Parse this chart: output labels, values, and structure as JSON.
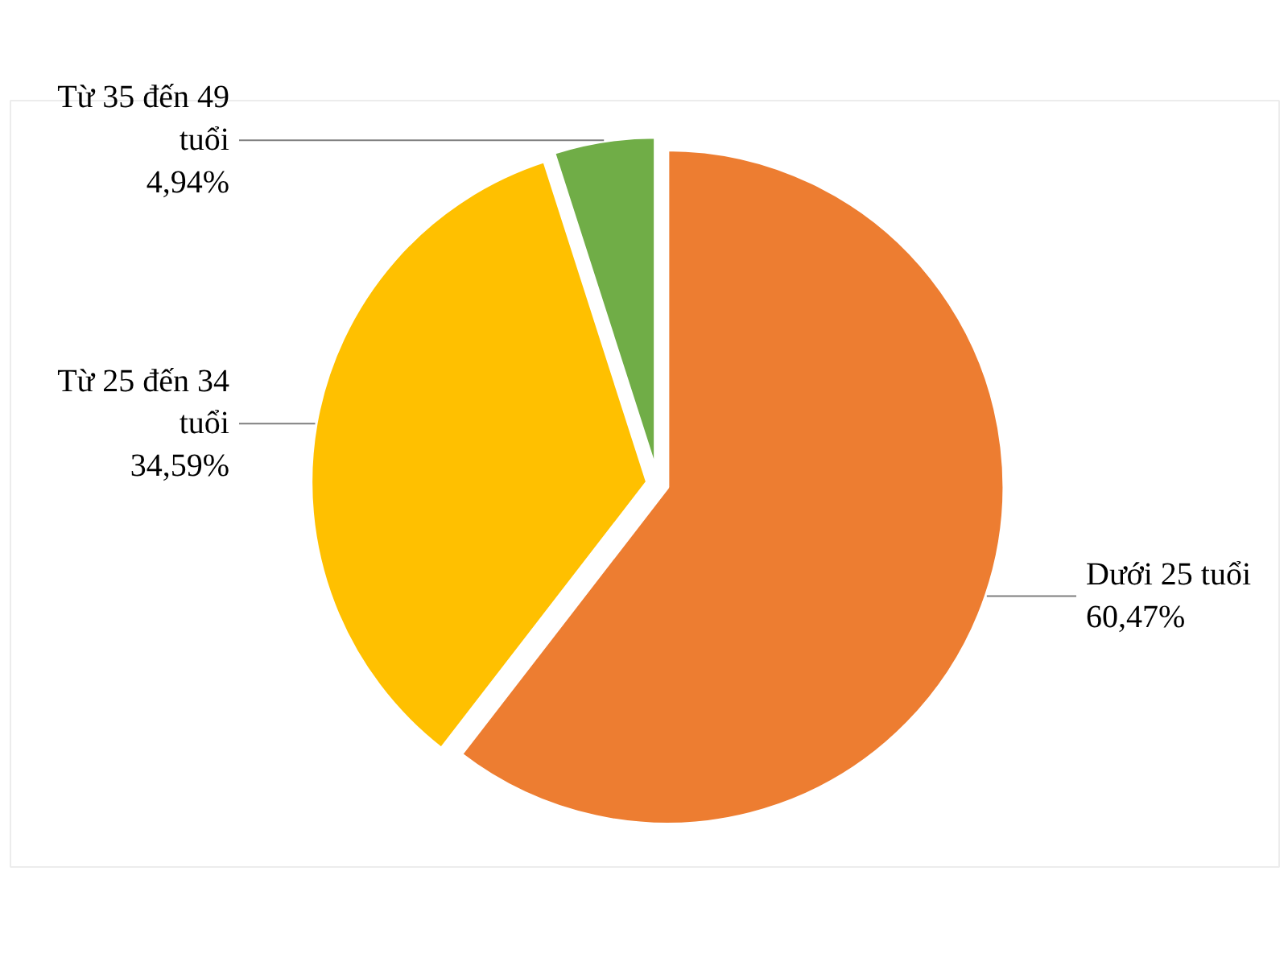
{
  "chart_data": {
    "type": "pie",
    "categories": [
      "Dưới 25 tuổi",
      "Từ 25 đến 34 tuổi",
      "Từ 35 đến 49 tuổi"
    ],
    "values": [
      60.47,
      34.59,
      4.94
    ],
    "value_labels": [
      "60,47%",
      "34,59%",
      "4,94%"
    ],
    "colors": [
      "#ed7d31",
      "#ffc000",
      "#70ad47"
    ]
  }
}
